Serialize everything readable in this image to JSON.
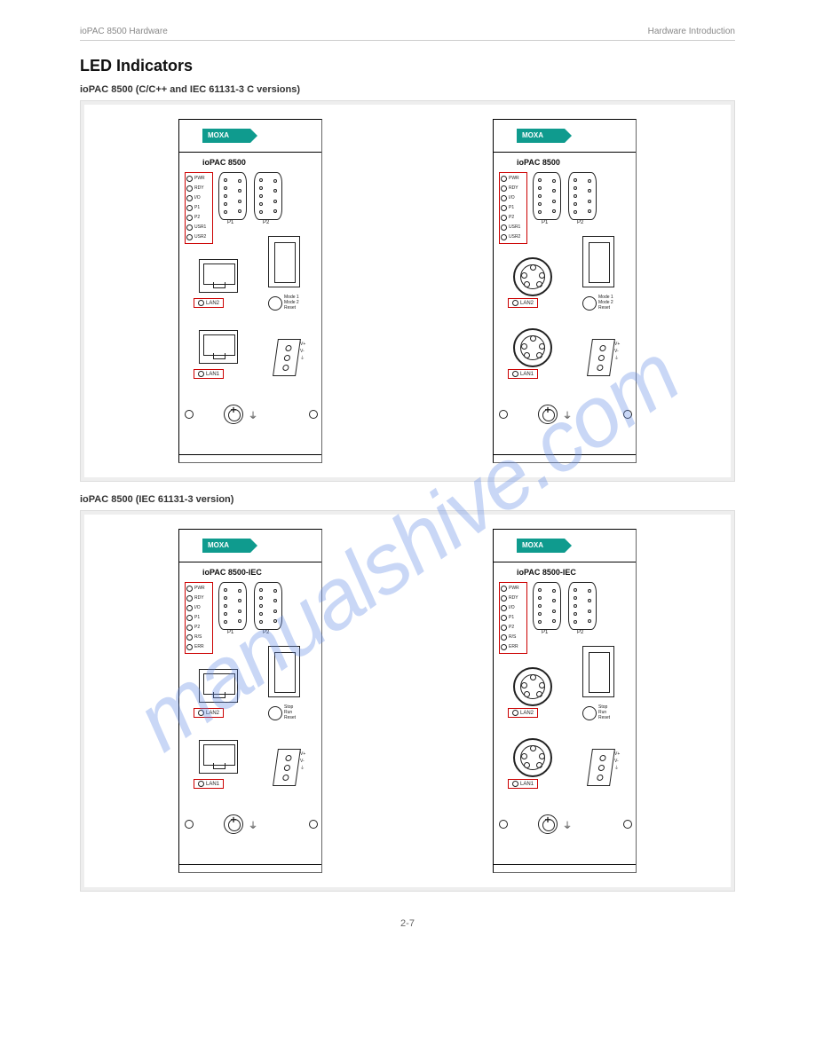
{
  "header": {
    "left": "ioPAC 8500 Hardware",
    "right": "Hardware Introduction"
  },
  "title": "LED Indicators",
  "watermark": "manualshive.com",
  "footer": "2-7",
  "groups": [
    {
      "sub": "ioPAC 8500 (C/C++ and IEC 61131-3 C versions)",
      "variants": [
        {
          "model": "ioPAC 8500",
          "eth": "rj45",
          "leds": [
            "PWR",
            "RDY",
            "I/O",
            "P1",
            "P2",
            "USR1",
            "USR2"
          ],
          "switch": [
            "Mode 1",
            "Mode 2",
            "Reset"
          ]
        },
        {
          "model": "ioPAC 8500",
          "eth": "m12",
          "leds": [
            "PWR",
            "RDY",
            "I/O",
            "P1",
            "P2",
            "USR1",
            "USR2"
          ],
          "switch": [
            "Mode 1",
            "Mode 2",
            "Reset"
          ]
        }
      ]
    },
    {
      "sub": "ioPAC 8500 (IEC 61131-3 version)",
      "variants": [
        {
          "model": "ioPAC 8500-IEC",
          "eth": "rj45",
          "leds": [
            "PWR",
            "RDY",
            "I/O",
            "P1",
            "P2",
            "R/S",
            "ERR"
          ],
          "switch": [
            "Stop",
            "Run",
            "Reset"
          ]
        },
        {
          "model": "ioPAC 8500-IEC",
          "eth": "m12",
          "leds": [
            "PWR",
            "RDY",
            "I/O",
            "P1",
            "P2",
            "R/S",
            "ERR"
          ],
          "switch": [
            "Stop",
            "Run",
            "Reset"
          ]
        }
      ]
    }
  ],
  "static": {
    "moxa": "MOXA",
    "p1": "P1",
    "p2": "P2",
    "lan1": "LAN1",
    "lan2": "LAN2",
    "vplus": "V+",
    "vminus": "V-",
    "colors": {
      "accent": "#0f9b8e",
      "highlight": "#c00"
    }
  }
}
